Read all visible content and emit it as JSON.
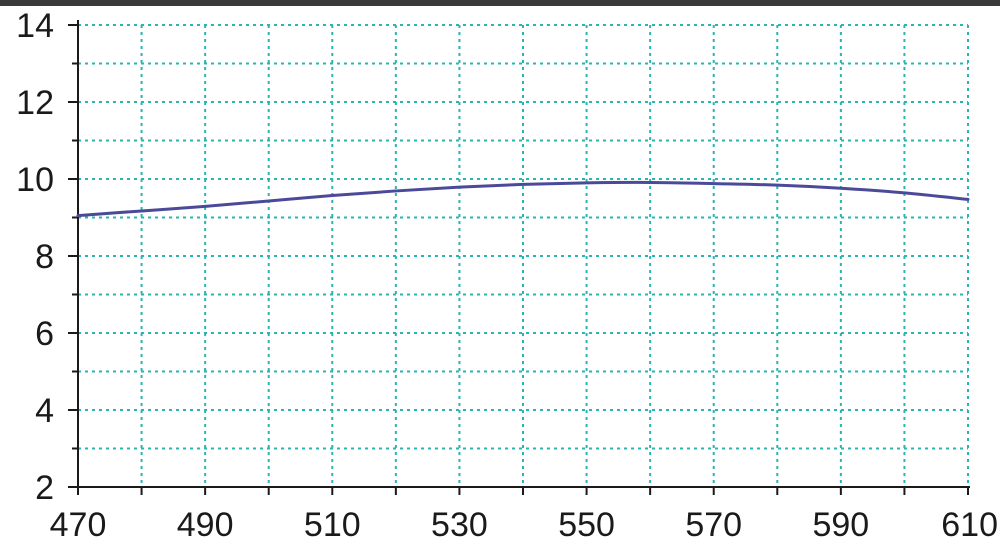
{
  "chart_data": {
    "type": "line",
    "title": "",
    "xlabel": "",
    "ylabel": "",
    "xlim": [
      470,
      610
    ],
    "ylim": [
      2,
      14
    ],
    "x_ticks": [
      470,
      490,
      510,
      530,
      550,
      570,
      590,
      610
    ],
    "y_ticks": [
      2,
      4,
      6,
      8,
      10,
      12,
      14
    ],
    "x_grid_step": 10,
    "y_grid_step": 1,
    "grid": true,
    "series": [
      {
        "name": "",
        "x": [
          470,
          480,
          490,
          500,
          510,
          520,
          530,
          540,
          550,
          560,
          570,
          580,
          590,
          600,
          610
        ],
        "y": [
          9.05,
          9.17,
          9.29,
          9.43,
          9.57,
          9.69,
          9.79,
          9.86,
          9.9,
          9.91,
          9.88,
          9.84,
          9.76,
          9.64,
          9.47
        ]
      }
    ],
    "colors": {
      "grid": "#2ab5b0",
      "line": "#4b4a9a",
      "axis": "#1a1a1a"
    }
  }
}
